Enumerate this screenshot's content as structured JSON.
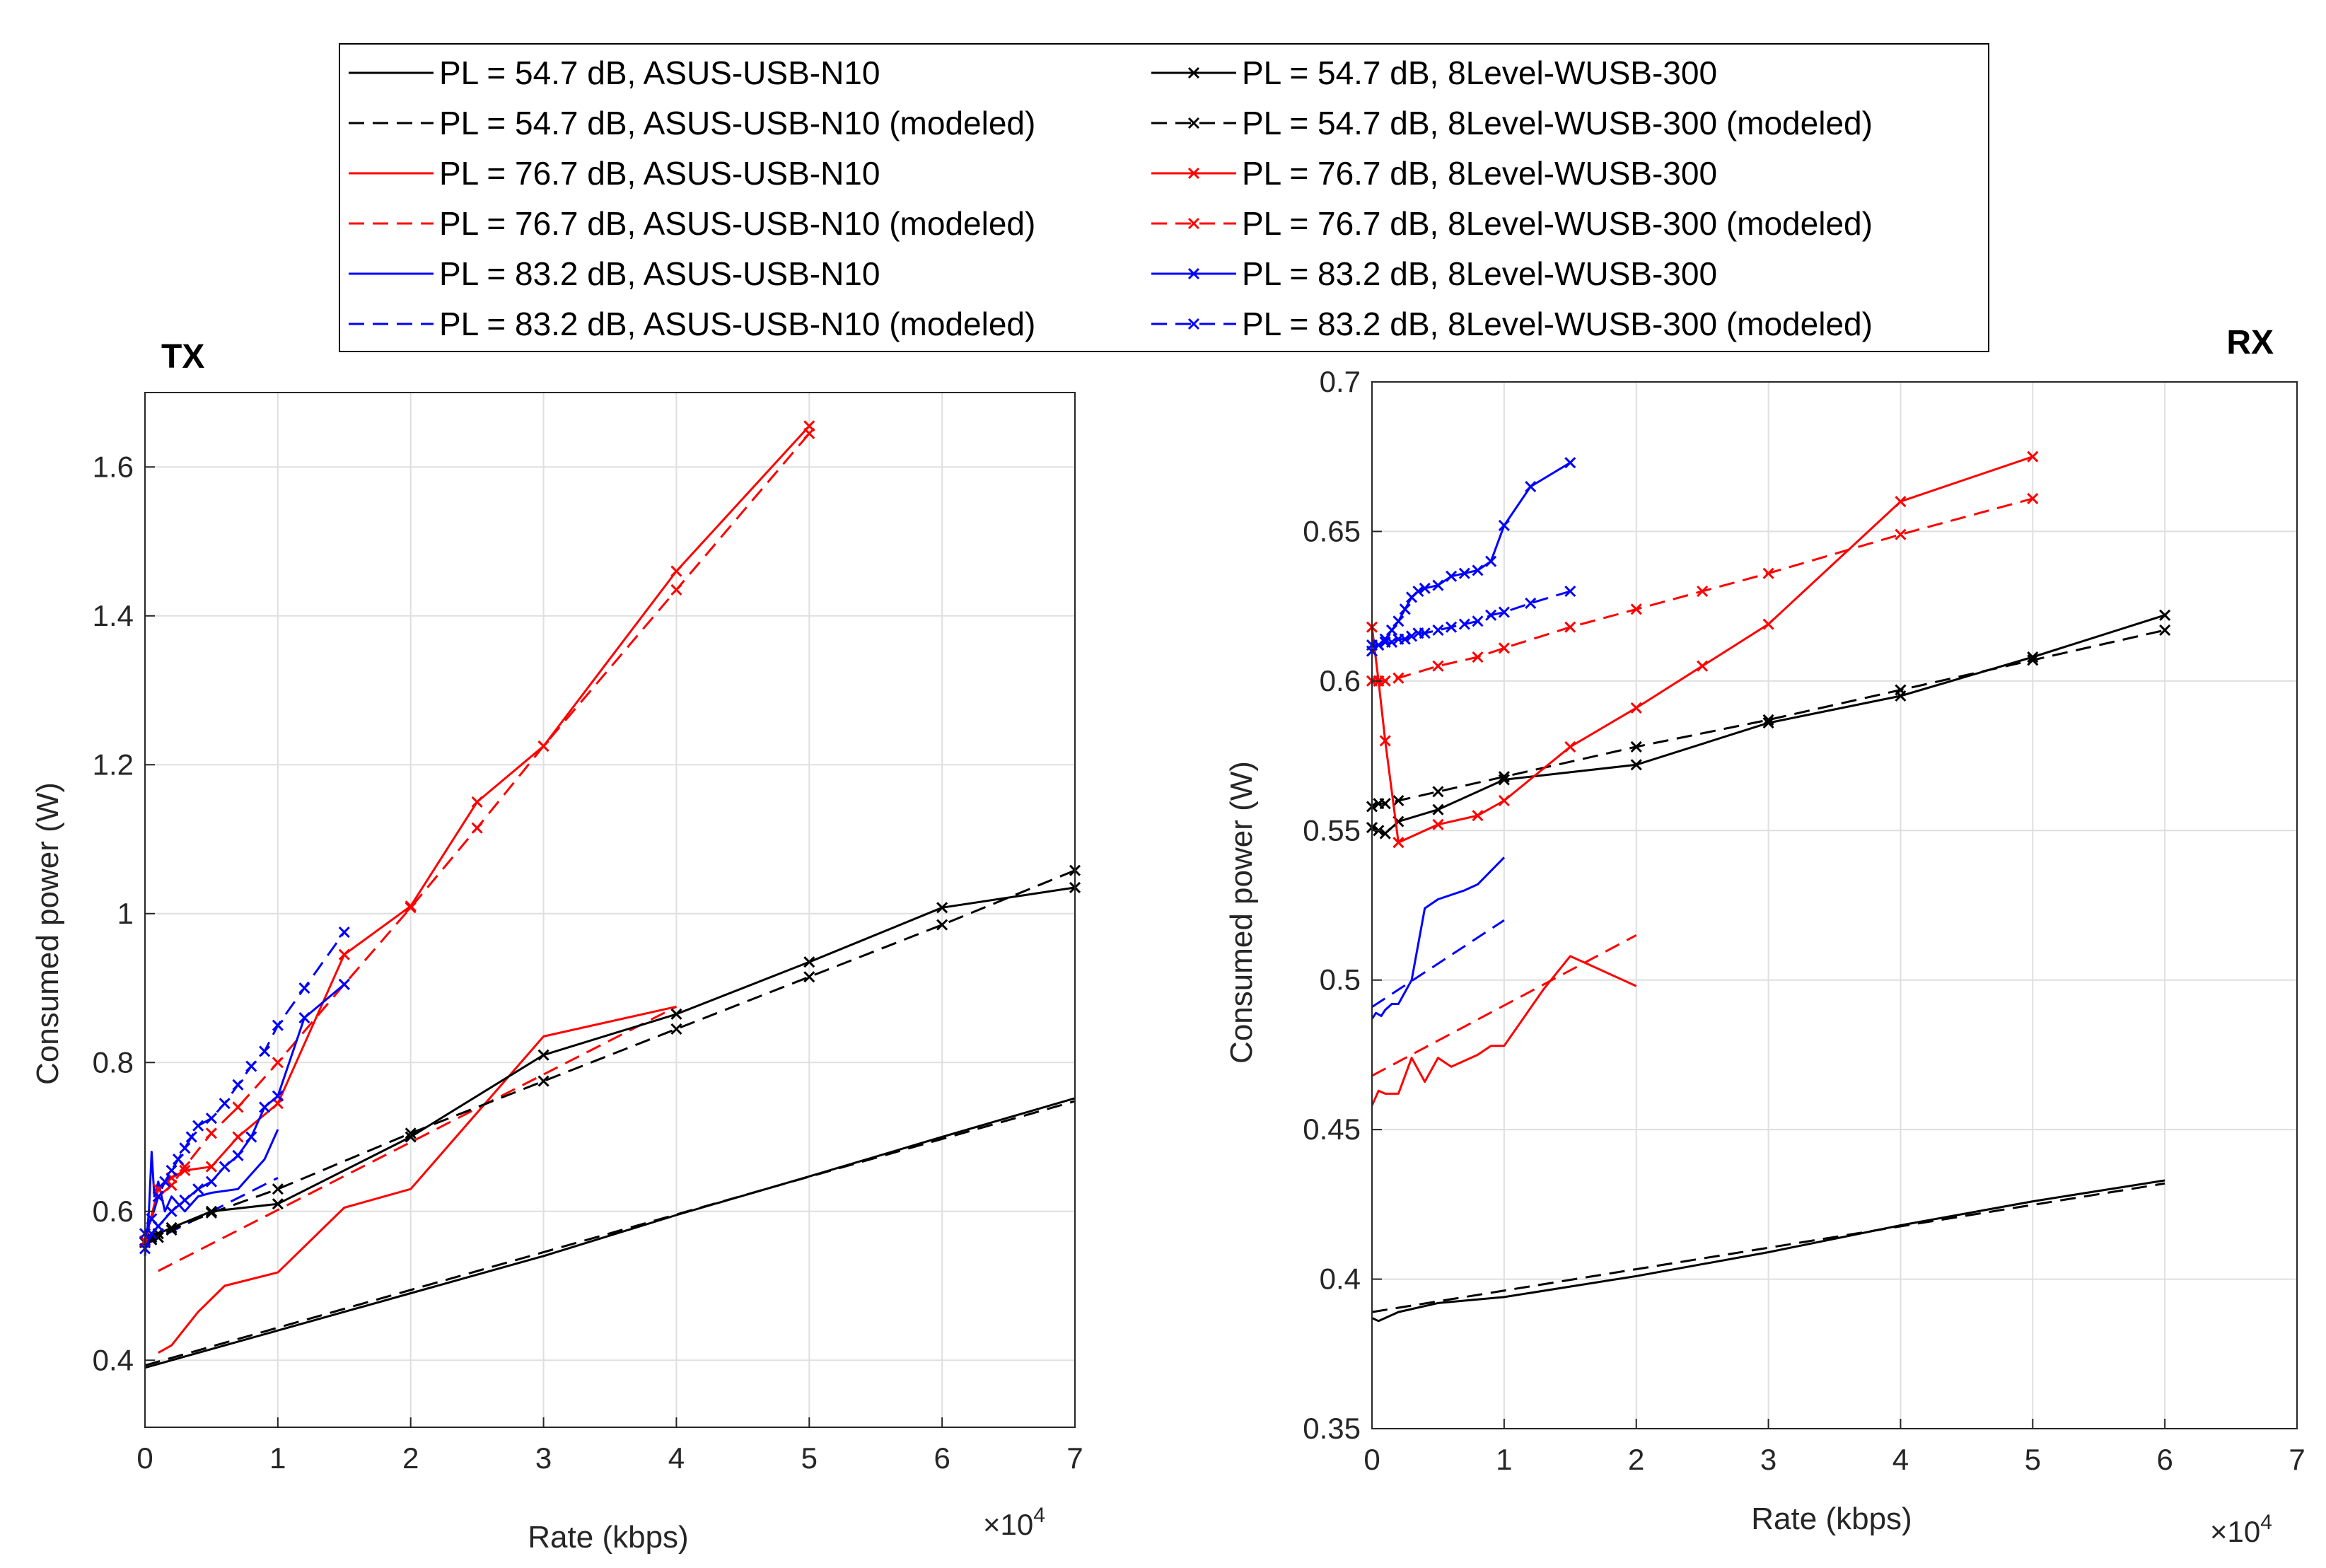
{
  "legend": [
    {
      "key": "a54",
      "label": "PL = 54.7 dB, ASUS-USB-N10",
      "color": "#000000",
      "dash": false,
      "marker": false
    },
    {
      "key": "a54m",
      "label": "PL = 54.7 dB, ASUS-USB-N10 (modeled)",
      "color": "#000000",
      "dash": true,
      "marker": false
    },
    {
      "key": "a76",
      "label": "PL = 76.7 dB, ASUS-USB-N10",
      "color": "#ff0000",
      "dash": false,
      "marker": false
    },
    {
      "key": "a76m",
      "label": "PL = 76.7 dB, ASUS-USB-N10 (modeled)",
      "color": "#ff0000",
      "dash": true,
      "marker": false
    },
    {
      "key": "a83",
      "label": "PL = 83.2 dB, ASUS-USB-N10",
      "color": "#0000ff",
      "dash": false,
      "marker": false
    },
    {
      "key": "a83m",
      "label": "PL = 83.2 dB, ASUS-USB-N10 (modeled)",
      "color": "#0000ff",
      "dash": true,
      "marker": false
    },
    {
      "key": "e54",
      "label": "PL = 54.7 dB, 8Level-WUSB-300",
      "color": "#000000",
      "dash": false,
      "marker": true
    },
    {
      "key": "e54m",
      "label": "PL = 54.7 dB, 8Level-WUSB-300 (modeled)",
      "color": "#000000",
      "dash": true,
      "marker": true
    },
    {
      "key": "e76",
      "label": "PL = 76.7 dB, 8Level-WUSB-300",
      "color": "#ff0000",
      "dash": false,
      "marker": true
    },
    {
      "key": "e76m",
      "label": "PL = 76.7 dB, 8Level-WUSB-300 (modeled)",
      "color": "#ff0000",
      "dash": true,
      "marker": true
    },
    {
      "key": "e83",
      "label": "PL = 83.2 dB, 8Level-WUSB-300",
      "color": "#0000ff",
      "dash": false,
      "marker": true
    },
    {
      "key": "e83m",
      "label": "PL = 83.2 dB, 8Level-WUSB-300 (modeled)",
      "color": "#0000ff",
      "dash": true,
      "marker": true
    }
  ],
  "chart_data": [
    {
      "type": "line",
      "title": "TX",
      "xlabel": "Rate (kbps)",
      "ylabel": "Consumed power (W)",
      "xlim": [
        0,
        70000
      ],
      "ylim": [
        0.31,
        1.7
      ],
      "xticks": [
        0,
        10000,
        20000,
        30000,
        40000,
        50000,
        60000,
        70000
      ],
      "xtick_labels": [
        "0",
        "1",
        "2",
        "3",
        "4",
        "5",
        "6",
        "7"
      ],
      "yticks": [
        0.4,
        0.6,
        0.8,
        1.0,
        1.2,
        1.4,
        1.6
      ],
      "ytick_labels": [
        "0.4",
        "0.6",
        "0.8",
        "1",
        "1.2",
        "1.4",
        "1.6"
      ],
      "x_exponent": "×10",
      "x_exponent_power": "4",
      "grid": true,
      "series": [
        {
          "name": "PL = 54.7 dB, ASUS-USB-N10",
          "key": "a54",
          "x": [
            0,
            10000,
            20000,
            30000,
            40000,
            50000,
            60000,
            70000
          ],
          "y": [
            0.39,
            0.44,
            0.49,
            0.54,
            0.595,
            0.647,
            0.7,
            0.752
          ]
        },
        {
          "name": "PL = 54.7 dB, ASUS-USB-N10 (modeled)",
          "key": "a54m",
          "x": [
            0,
            70000
          ],
          "y": [
            0.393,
            0.748
          ]
        },
        {
          "name": "PL = 76.7 dB, ASUS-USB-N10",
          "key": "a76",
          "x": [
            1000,
            2000,
            4000,
            6000,
            10000,
            15000,
            20000,
            30000,
            40000
          ],
          "y": [
            0.41,
            0.42,
            0.465,
            0.5,
            0.518,
            0.605,
            0.63,
            0.835,
            0.875
          ]
        },
        {
          "name": "PL = 76.7 dB, ASUS-USB-N10 (modeled)",
          "key": "a76m",
          "x": [
            1000,
            40000
          ],
          "y": [
            0.52,
            0.875
          ]
        },
        {
          "name": "PL = 83.2 dB, ASUS-USB-N10",
          "key": "a83",
          "x": [
            0,
            300,
            500,
            700,
            1000,
            1500,
            2000,
            3000,
            4000,
            5000,
            7000,
            8000,
            9000,
            10000
          ],
          "y": [
            0.54,
            0.6,
            0.68,
            0.62,
            0.64,
            0.6,
            0.62,
            0.6,
            0.62,
            0.625,
            0.63,
            0.65,
            0.67,
            0.71
          ]
        },
        {
          "name": "PL = 83.2 dB, ASUS-USB-N10 (modeled)",
          "key": "a83m",
          "x": [
            0,
            10000
          ],
          "y": [
            0.555,
            0.645
          ]
        },
        {
          "name": "PL = 54.7 dB, 8Level-WUSB-300",
          "key": "e54",
          "x": [
            0,
            500,
            1000,
            2000,
            5000,
            10000,
            20000,
            30000,
            40000,
            50000,
            60000,
            70000
          ],
          "y": [
            0.56,
            0.565,
            0.57,
            0.578,
            0.6,
            0.61,
            0.7,
            0.81,
            0.865,
            0.935,
            1.008,
            1.035
          ]
        },
        {
          "name": "PL = 54.7 dB, 8Level-WUSB-300 (modeled)",
          "key": "e54m",
          "x": [
            0,
            500,
            1000,
            2000,
            5000,
            10000,
            20000,
            30000,
            40000,
            50000,
            60000,
            70000
          ],
          "y": [
            0.558,
            0.562,
            0.565,
            0.575,
            0.598,
            0.63,
            0.705,
            0.775,
            0.845,
            0.915,
            0.985,
            1.058
          ]
        },
        {
          "name": "PL = 76.7 dB, 8Level-WUSB-300",
          "key": "e76",
          "x": [
            0,
            1000,
            2000,
            3000,
            5000,
            7000,
            10000,
            15000,
            20000,
            25000,
            30000,
            40000,
            50000
          ],
          "y": [
            0.56,
            0.63,
            0.645,
            0.655,
            0.66,
            0.7,
            0.745,
            0.945,
            1.01,
            1.15,
            1.225,
            1.46,
            1.655
          ]
        },
        {
          "name": "PL = 76.7 dB, 8Level-WUSB-300 (modeled)",
          "key": "e76m",
          "x": [
            0,
            1000,
            2000,
            3000,
            5000,
            7000,
            10000,
            15000,
            20000,
            25000,
            30000,
            40000,
            50000
          ],
          "y": [
            0.56,
            0.62,
            0.635,
            0.66,
            0.705,
            0.74,
            0.8,
            0.905,
            1.008,
            1.115,
            1.225,
            1.435,
            1.645
          ]
        },
        {
          "name": "PL = 83.2 dB, 8Level-WUSB-300",
          "key": "e83",
          "x": [
            0,
            500,
            1000,
            2000,
            3000,
            4000,
            5000,
            6000,
            7000,
            8000,
            9000,
            10000,
            12000,
            15000
          ],
          "y": [
            0.55,
            0.57,
            0.58,
            0.6,
            0.615,
            0.63,
            0.64,
            0.66,
            0.675,
            0.7,
            0.74,
            0.755,
            0.86,
            0.905
          ]
        },
        {
          "name": "PL = 83.2 dB, 8Level-WUSB-300 (modeled)",
          "key": "e83m",
          "x": [
            0,
            500,
            1000,
            1500,
            2000,
            2500,
            3000,
            3500,
            4000,
            5000,
            6000,
            7000,
            8000,
            9000,
            10000,
            12000,
            15000
          ],
          "y": [
            0.57,
            0.59,
            0.62,
            0.64,
            0.655,
            0.67,
            0.685,
            0.7,
            0.715,
            0.725,
            0.745,
            0.77,
            0.795,
            0.815,
            0.85,
            0.9,
            0.975
          ]
        }
      ]
    },
    {
      "type": "line",
      "title": "RX",
      "xlabel": "Rate (kbps)",
      "ylabel": "Consumed power (W)",
      "xlim": [
        0,
        70000
      ],
      "ylim": [
        0.35,
        0.7
      ],
      "xticks": [
        0,
        10000,
        20000,
        30000,
        40000,
        50000,
        60000,
        70000
      ],
      "xtick_labels": [
        "0",
        "1",
        "2",
        "3",
        "4",
        "5",
        "6",
        "7"
      ],
      "yticks": [
        0.35,
        0.4,
        0.45,
        0.5,
        0.55,
        0.6,
        0.65,
        0.7
      ],
      "ytick_labels": [
        "0.35",
        "0.4",
        "0.45",
        "0.5",
        "0.55",
        "0.6",
        "0.65",
        "0.7"
      ],
      "x_exponent": "×10",
      "x_exponent_power": "4",
      "grid": true,
      "series": [
        {
          "name": "PL = 54.7 dB, ASUS-USB-N10",
          "key": "a54",
          "x": [
            0,
            500,
            2000,
            5000,
            10000,
            20000,
            30000,
            40000,
            50000,
            60000
          ],
          "y": [
            0.387,
            0.386,
            0.389,
            0.392,
            0.394,
            0.401,
            0.409,
            0.418,
            0.426,
            0.433
          ]
        },
        {
          "name": "PL = 54.7 dB, ASUS-USB-N10 (modeled)",
          "key": "a54m",
          "x": [
            0,
            60000
          ],
          "y": [
            0.389,
            0.432
          ]
        },
        {
          "name": "PL = 76.7 dB, ASUS-USB-N10",
          "key": "a76",
          "x": [
            0,
            500,
            1000,
            2000,
            3000,
            4000,
            5000,
            6000,
            8000,
            9000,
            10000,
            13000,
            15000,
            17000,
            20000
          ],
          "y": [
            0.458,
            0.463,
            0.462,
            0.462,
            0.474,
            0.466,
            0.474,
            0.471,
            0.475,
            0.478,
            0.478,
            0.497,
            0.508,
            0.504,
            0.498
          ]
        },
        {
          "name": "PL = 76.7 dB, ASUS-USB-N10 (modeled)",
          "key": "a76m",
          "x": [
            0,
            20000
          ],
          "y": [
            0.468,
            0.515
          ]
        },
        {
          "name": "PL = 83.2 dB, ASUS-USB-N10",
          "key": "a83",
          "x": [
            0,
            300,
            700,
            1000,
            1500,
            2000,
            3000,
            4000,
            5000,
            7000,
            8000,
            10000
          ],
          "y": [
            0.487,
            0.489,
            0.488,
            0.49,
            0.492,
            0.492,
            0.5,
            0.524,
            0.527,
            0.53,
            0.532,
            0.541
          ]
        },
        {
          "name": "PL = 83.2 dB, ASUS-USB-N10 (modeled)",
          "key": "a83m",
          "x": [
            0,
            10000
          ],
          "y": [
            0.491,
            0.52
          ]
        },
        {
          "name": "PL = 54.7 dB, 8Level-WUSB-300",
          "key": "e54",
          "x": [
            0,
            500,
            1000,
            2000,
            5000,
            10000,
            20000,
            30000,
            40000,
            50000,
            60000
          ],
          "y": [
            0.551,
            0.55,
            0.549,
            0.553,
            0.557,
            0.567,
            0.572,
            0.586,
            0.595,
            0.608,
            0.622
          ]
        },
        {
          "name": "PL = 54.7 dB, 8Level-WUSB-300 (modeled)",
          "key": "e54m",
          "x": [
            0,
            500,
            1000,
            2000,
            5000,
            10000,
            20000,
            30000,
            40000,
            50000,
            60000
          ],
          "y": [
            0.558,
            0.559,
            0.559,
            0.56,
            0.563,
            0.568,
            0.578,
            0.587,
            0.597,
            0.607,
            0.617
          ]
        },
        {
          "name": "PL = 76.7 dB, 8Level-WUSB-300",
          "key": "e76",
          "x": [
            0,
            500,
            1000,
            2000,
            5000,
            8000,
            10000,
            15000,
            20000,
            25000,
            30000,
            40000,
            50000
          ],
          "y": [
            0.618,
            0.6,
            0.58,
            0.546,
            0.552,
            0.555,
            0.56,
            0.578,
            0.591,
            0.605,
            0.619,
            0.66,
            0.675
          ]
        },
        {
          "name": "PL = 76.7 dB, 8Level-WUSB-300 (modeled)",
          "key": "e76m",
          "x": [
            0,
            500,
            1000,
            2000,
            5000,
            8000,
            10000,
            15000,
            20000,
            25000,
            30000,
            40000,
            50000
          ],
          "y": [
            0.6,
            0.6,
            0.6,
            0.601,
            0.605,
            0.608,
            0.611,
            0.618,
            0.624,
            0.63,
            0.636,
            0.649,
            0.661
          ]
        },
        {
          "name": "PL = 83.2 dB, 8Level-WUSB-300",
          "key": "e83",
          "x": [
            0,
            500,
            1000,
            1500,
            2000,
            2500,
            3000,
            3500,
            4000,
            5000,
            6000,
            7000,
            8000,
            9000,
            10000,
            12000,
            15000
          ],
          "y": [
            0.61,
            0.612,
            0.614,
            0.617,
            0.62,
            0.624,
            0.628,
            0.63,
            0.631,
            0.632,
            0.635,
            0.636,
            0.637,
            0.64,
            0.652,
            0.665,
            0.673
          ]
        },
        {
          "name": "PL = 83.2 dB, 8Level-WUSB-300 (modeled)",
          "key": "e83m",
          "x": [
            0,
            500,
            1000,
            1500,
            2000,
            2500,
            3000,
            3500,
            4000,
            5000,
            6000,
            7000,
            8000,
            9000,
            10000,
            12000,
            15000
          ],
          "y": [
            0.612,
            0.612,
            0.613,
            0.613,
            0.614,
            0.614,
            0.615,
            0.616,
            0.616,
            0.617,
            0.618,
            0.619,
            0.62,
            0.622,
            0.623,
            0.626,
            0.63
          ]
        }
      ]
    }
  ]
}
